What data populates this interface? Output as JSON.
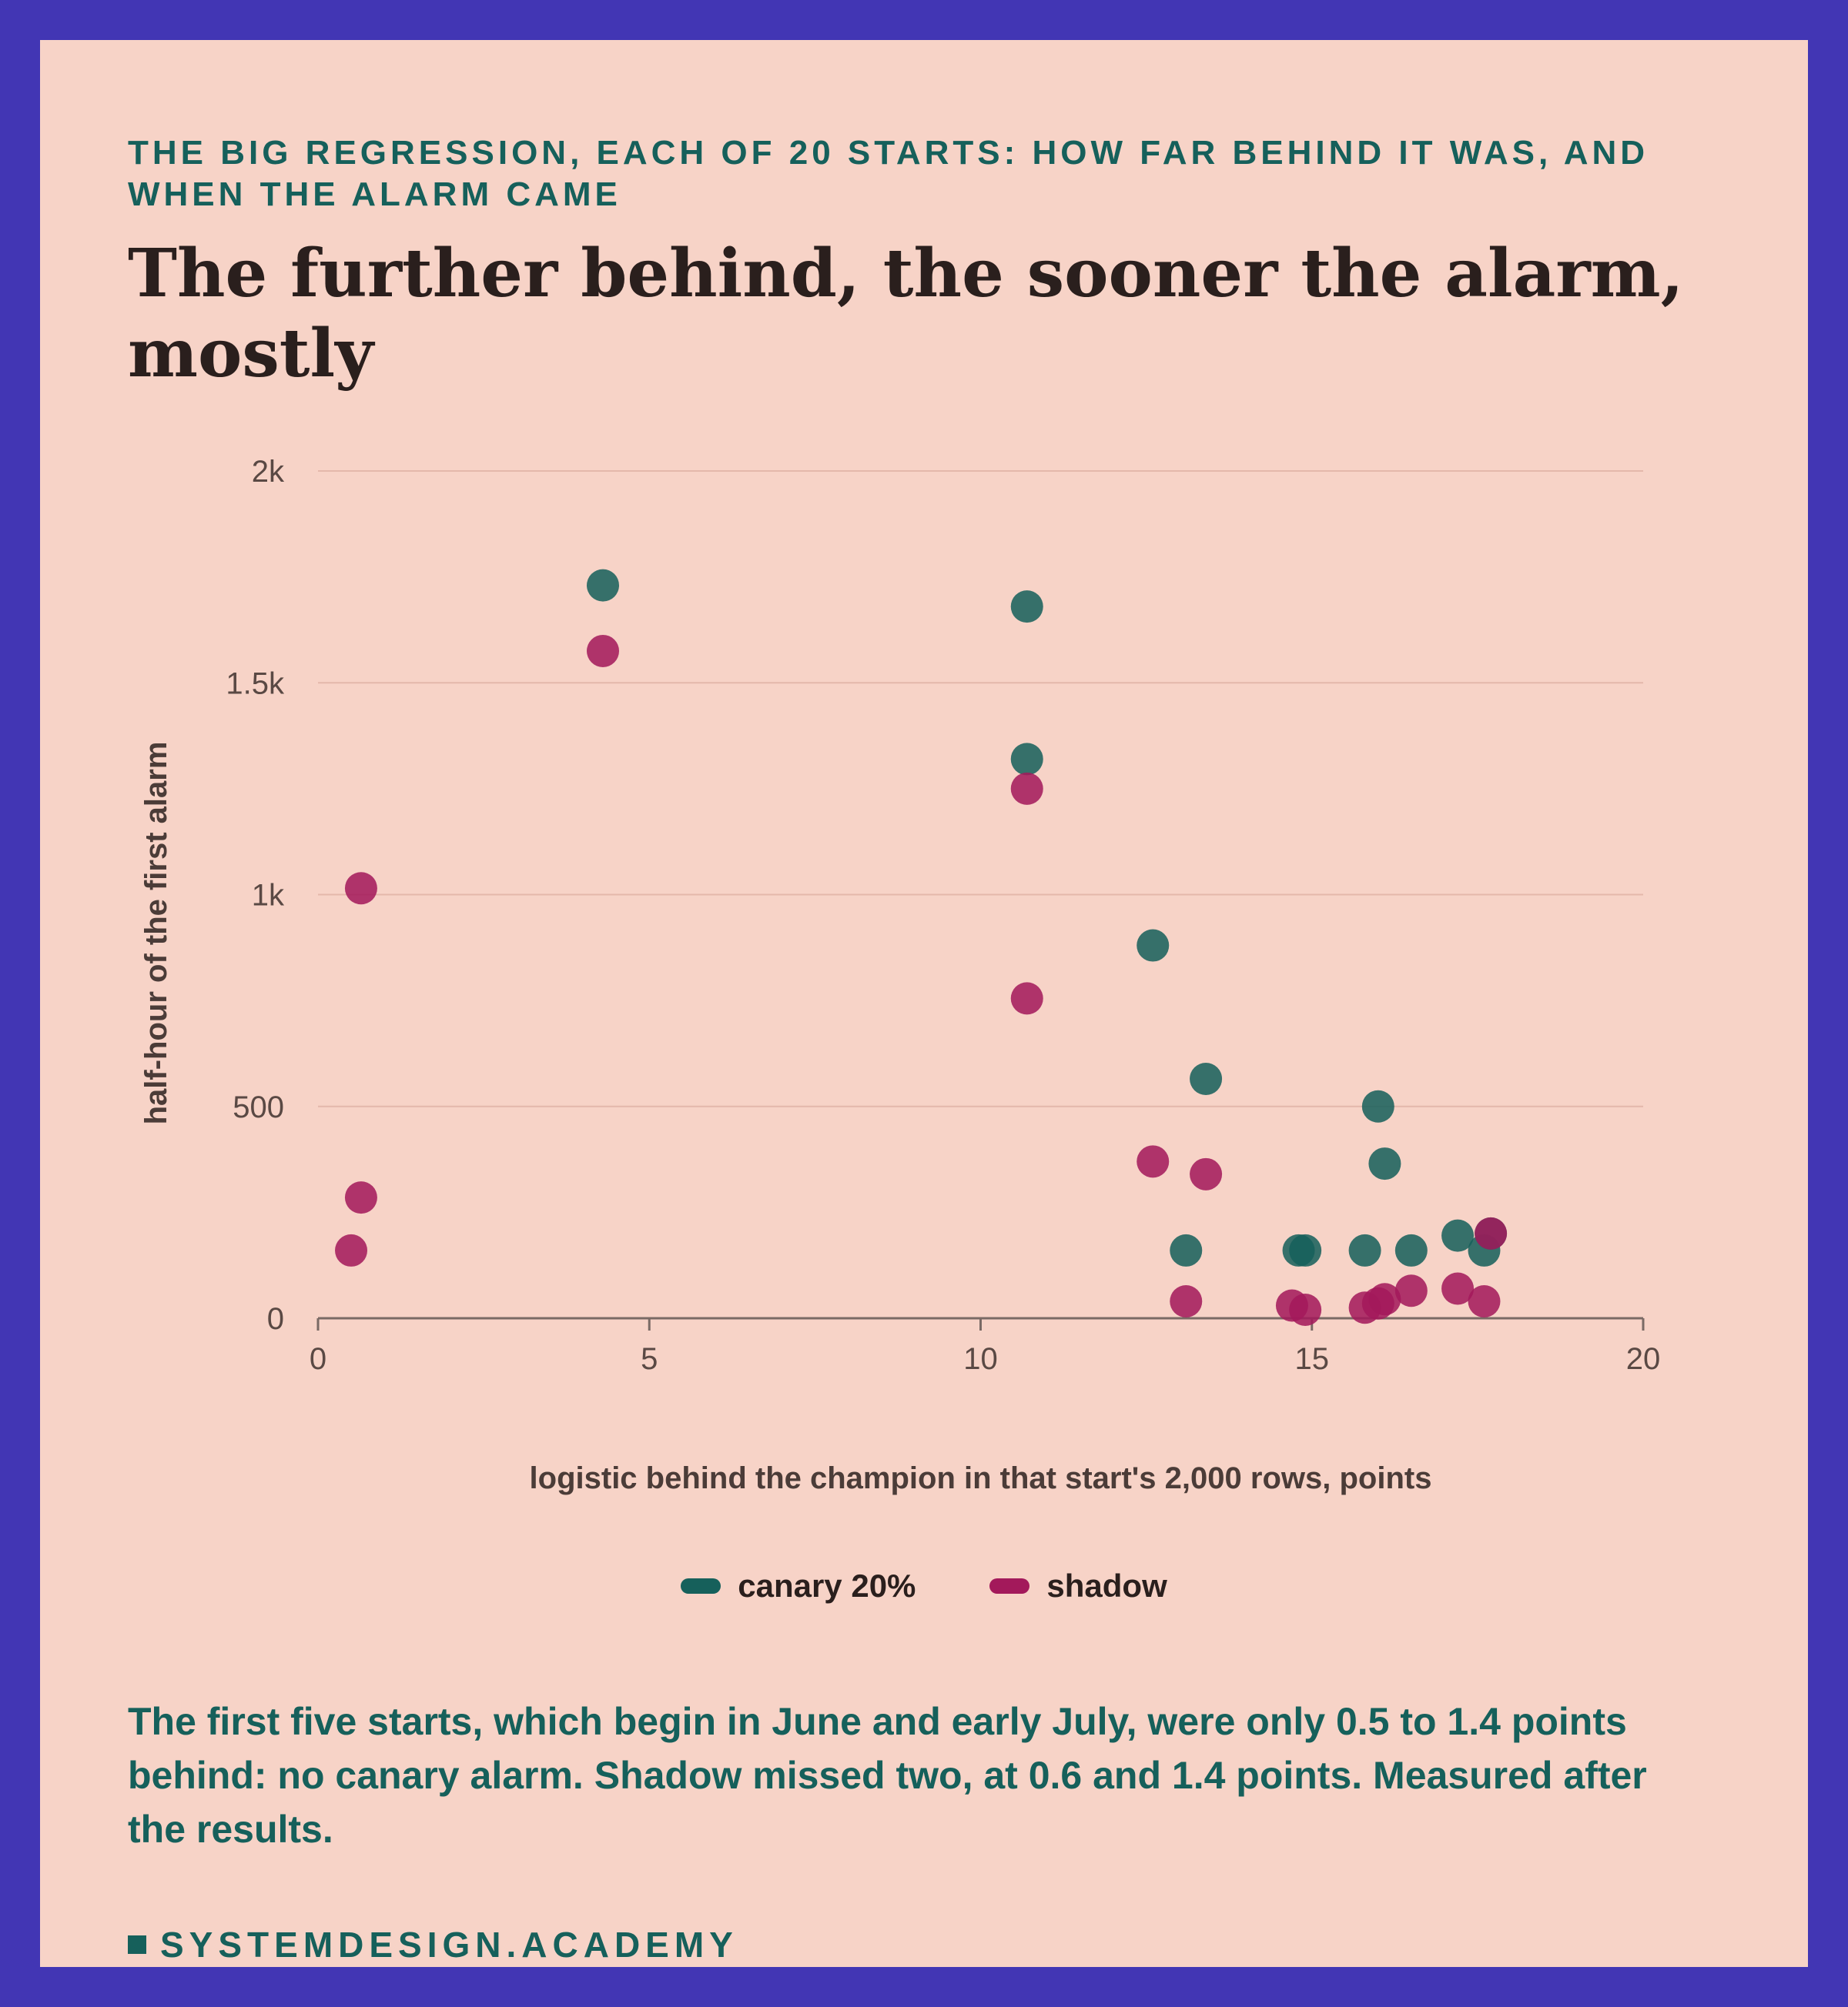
{
  "header": {
    "eyebrow": "THE BIG REGRESSION, EACH OF 20 STARTS: HOW FAR BEHIND IT WAS, AND WHEN THE ALARM CAME",
    "title": "The further behind, the sooner the alarm, mostly"
  },
  "colors": {
    "background_frame": "#4236b4",
    "card": "#f7d3c7",
    "canary": "#16605b",
    "shadow": "#a3195b",
    "accent_text": "#16605b"
  },
  "chart_data": {
    "type": "scatter",
    "xlabel": "logistic behind the champion in that start's 2,000 rows, points",
    "ylabel": "half-hour of the first alarm",
    "xlim": [
      0,
      20
    ],
    "ylim": [
      0,
      2000
    ],
    "x_ticks": [
      {
        "value": 0,
        "label": "0"
      },
      {
        "value": 5,
        "label": "5"
      },
      {
        "value": 10,
        "label": "10"
      },
      {
        "value": 15,
        "label": "15"
      },
      {
        "value": 20,
        "label": "20"
      }
    ],
    "y_ticks": [
      {
        "value": 0,
        "label": "0"
      },
      {
        "value": 500,
        "label": "500"
      },
      {
        "value": 1000,
        "label": "1k"
      },
      {
        "value": 1500,
        "label": "1.5k"
      },
      {
        "value": 2000,
        "label": "2k"
      }
    ],
    "grid": "horizontal",
    "legend_position": "bottom-center",
    "series": [
      {
        "name": "canary 20%",
        "color": "#16605b",
        "points": [
          {
            "x": 4.3,
            "y": 1730
          },
          {
            "x": 10.7,
            "y": 1680
          },
          {
            "x": 10.7,
            "y": 1320
          },
          {
            "x": 12.6,
            "y": 880
          },
          {
            "x": 13.4,
            "y": 565
          },
          {
            "x": 13.1,
            "y": 160
          },
          {
            "x": 14.8,
            "y": 160
          },
          {
            "x": 14.9,
            "y": 160
          },
          {
            "x": 15.8,
            "y": 160
          },
          {
            "x": 16.0,
            "y": 500
          },
          {
            "x": 16.1,
            "y": 365
          },
          {
            "x": 16.5,
            "y": 160
          },
          {
            "x": 17.2,
            "y": 195
          },
          {
            "x": 17.6,
            "y": 160
          },
          {
            "x": 17.7,
            "y": 200
          }
        ]
      },
      {
        "name": "shadow",
        "color": "#a3195b",
        "points": [
          {
            "x": 0.5,
            "y": 160
          },
          {
            "x": 0.65,
            "y": 1015
          },
          {
            "x": 0.65,
            "y": 285
          },
          {
            "x": 4.3,
            "y": 1575
          },
          {
            "x": 10.7,
            "y": 1250
          },
          {
            "x": 10.7,
            "y": 755
          },
          {
            "x": 12.6,
            "y": 370
          },
          {
            "x": 13.4,
            "y": 340
          },
          {
            "x": 13.1,
            "y": 40
          },
          {
            "x": 14.7,
            "y": 30
          },
          {
            "x": 14.9,
            "y": 20
          },
          {
            "x": 15.8,
            "y": 25
          },
          {
            "x": 16.0,
            "y": 35
          },
          {
            "x": 16.1,
            "y": 45
          },
          {
            "x": 16.5,
            "y": 65
          },
          {
            "x": 17.2,
            "y": 70
          },
          {
            "x": 17.6,
            "y": 40
          },
          {
            "x": 17.7,
            "y": 200
          }
        ]
      }
    ]
  },
  "note": "The first five starts, which begin in June and early July, were only 0.5 to 1.4 points behind: no canary alarm. Shadow missed two, at 0.6 and 1.4 points. Measured after the results.",
  "footer": {
    "brand": "SYSTEMDESIGN.ACADEMY"
  }
}
